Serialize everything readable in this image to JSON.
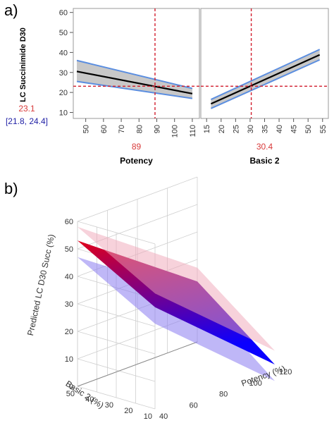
{
  "panel_a": {
    "letter": "a)",
    "y_label": "LC Succinimide D30",
    "predicted_value": "23.1",
    "predicted_interval": "[21.8, 24.4]",
    "colors": {
      "interval": "#1f1fa5",
      "value": "#d83a3a",
      "ref_line": "#d11d2d",
      "band": "#c8c8c8",
      "band_edge": "#5b8ee0",
      "line": "#000000"
    }
  },
  "panel_b": {
    "letter": "b)",
    "z_label": "Predicted LC D30 Succ (%)",
    "y_label": "Basic 2 (%)",
    "x_label": "Potency (%)",
    "colors": {
      "surface_high": "#e0001a",
      "surface_low": "#0a00ff",
      "lower_ci": "#8a7cf0",
      "upper_ci": "#f0a6b8"
    }
  },
  "chart_data": [
    {
      "type": "line",
      "title": "",
      "ylabel": "LC Succinimide D30",
      "ylim": [
        7,
        62
      ],
      "y_ticks": [
        10,
        20,
        30,
        40,
        50,
        60
      ],
      "reference_y": 23.1,
      "panels": [
        {
          "xlabel": "Potency",
          "current_x_label": "89",
          "current_x": 89,
          "xlim": [
            43,
            114
          ],
          "x_ticks": [
            50,
            60,
            70,
            80,
            90,
            100,
            110
          ],
          "series": [
            {
              "role": "fit",
              "x": [
                45,
                110
              ],
              "y": [
                30.5,
                19.4
              ]
            },
            {
              "role": "upper",
              "x": [
                45,
                110
              ],
              "y": [
                36.0,
                22.0
              ]
            },
            {
              "role": "lower",
              "x": [
                45,
                110
              ],
              "y": [
                25.5,
                17.0
              ]
            }
          ]
        },
        {
          "xlabel": "Basic 2",
          "current_x_label": "30.4",
          "current_x": 30.4,
          "xlim": [
            13,
            57
          ],
          "x_ticks": [
            15,
            20,
            25,
            30,
            35,
            40,
            45,
            50,
            55
          ],
          "series": [
            {
              "role": "fit",
              "x": [
                16.5,
                54
              ],
              "y": [
                14.3,
                38.8
              ]
            },
            {
              "role": "upper",
              "x": [
                16.5,
                54
              ],
              "y": [
                16.5,
                41.5
              ]
            },
            {
              "role": "lower",
              "x": [
                16.5,
                54
              ],
              "y": [
                12.0,
                36.3
              ]
            }
          ]
        }
      ]
    },
    {
      "type": "surface3d",
      "title": "",
      "xlabel": "Potency (%)",
      "ylabel": "Basic 2 (%)",
      "zlabel": "Predicted LC D30 Succ (%)",
      "x_ticks": [
        40,
        60,
        80,
        100,
        120
      ],
      "y_ticks": [
        10,
        20,
        30,
        40,
        50
      ],
      "z_ticks": [
        0,
        10,
        20,
        30,
        40,
        50,
        60
      ],
      "surfaces": [
        {
          "name": "upper",
          "corners": [
            [
              40,
              50,
              58
            ],
            [
              120,
              50,
              27
            ],
            [
              120,
              10,
              5
            ],
            [
              40,
              10,
              42
            ]
          ]
        },
        {
          "name": "predicted",
          "corners": [
            [
              40,
              50,
              53
            ],
            [
              120,
              50,
              22
            ],
            [
              120,
              10,
              0
            ],
            [
              40,
              10,
              37
            ]
          ]
        },
        {
          "name": "lower",
          "corners": [
            [
              40,
              50,
              47
            ],
            [
              120,
              50,
              17
            ],
            [
              120,
              10,
              -6
            ],
            [
              40,
              10,
              31
            ]
          ]
        }
      ]
    }
  ]
}
